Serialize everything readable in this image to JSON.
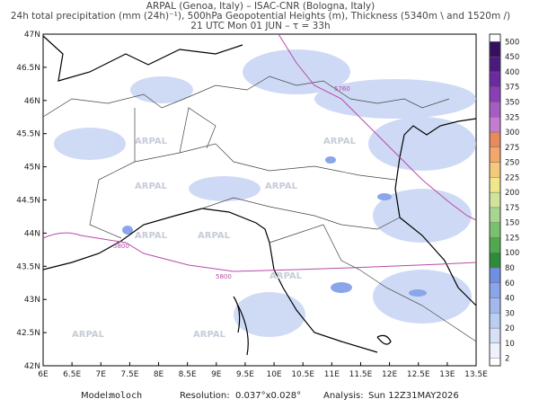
{
  "header": {
    "line1": "ARPAL (Genoa, Italy)  –  ISAC-CNR (Bologna, Italy)",
    "line2": "24h total precipitation (mm (24h)⁻¹), 500hPa Geopotential Heights (m), Thickness (5340m \\ and 1520m /)",
    "line3": "21 UTC Mon 01 JUN  –  τ = 33h"
  },
  "map": {
    "lon_labels": [
      "6E",
      "6.5E",
      "7E",
      "7.5E",
      "8E",
      "8.5E",
      "9E",
      "9.5E",
      "10E",
      "10.5E",
      "11E",
      "11.5E",
      "12E",
      "12.5E",
      "13E",
      "13.5E"
    ],
    "lat_labels": [
      "42N",
      "42.5N",
      "43N",
      "43.5N",
      "44N",
      "44.5N",
      "45N",
      "45.5N",
      "46N",
      "46.5N",
      "47N"
    ],
    "contour_labels": [
      "5760",
      "5800",
      "5800"
    ],
    "watermark": "ARPAL"
  },
  "colorbar": {
    "levels": [
      2,
      10,
      20,
      30,
      40,
      60,
      80,
      100,
      125,
      150,
      175,
      200,
      225,
      250,
      275,
      300,
      325,
      350,
      375,
      400,
      450,
      500
    ],
    "colors": [
      "#eef2fc",
      "#d6e0f7",
      "#bccdf2",
      "#a3b9ee",
      "#8aa5e9",
      "#6e8fe3",
      "#2e8b3a",
      "#4fa94f",
      "#79c06f",
      "#a6d68f",
      "#cfe59a",
      "#f0e68c",
      "#f3c97a",
      "#f1a86a",
      "#e88a5d",
      "#c77bd0",
      "#a55cc4",
      "#8a3fb5",
      "#6b2aa0",
      "#4b1a80",
      "#34105e"
    ]
  },
  "footer": {
    "model_label": "Model:",
    "model": "moloch",
    "res_label": "Resolution:",
    "res": "0.037°x0.028°",
    "analysis_label": "Analysis:",
    "analysis": "Sun 12Z31MAY2026"
  }
}
